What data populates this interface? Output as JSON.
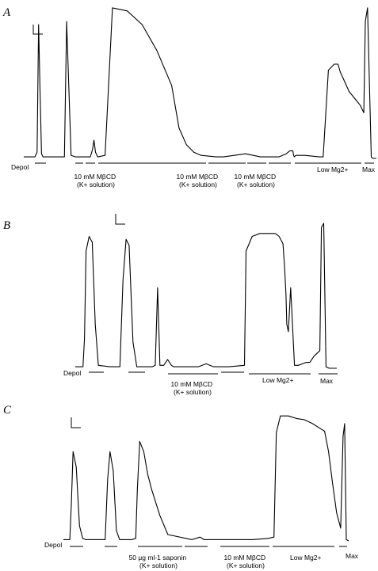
{
  "chart_data": [
    {
      "type": "line",
      "panel": "A",
      "annotations": [
        {
          "text": "Depol",
          "lines": [
            "Depol"
          ]
        },
        {
          "text": "10 mM MβCD (K+ solution)",
          "lines": [
            "10 mM MβCD",
            "(K+ solution)"
          ]
        },
        {
          "text": "10 mM MβCD (K+ solution)",
          "lines": [
            "10 mM MβCD",
            "(K+ solution)"
          ]
        },
        {
          "text": "10 mM MβCD (K+ solution)",
          "lines": [
            "10 mM MβCD",
            "(K+ solution)"
          ]
        },
        {
          "text": "Low Mg2+",
          "lines": [
            "Low Mg2+"
          ]
        },
        {
          "text": "Max",
          "lines": [
            "Max"
          ]
        }
      ],
      "series": [
        {
          "x": [
            0,
            15,
            18,
            20,
            22,
            24,
            26,
            30,
            40,
            55,
            58,
            64,
            70,
            80,
            90,
            93,
            95,
            97,
            100,
            110,
            120,
            140,
            160,
            180,
            200,
            210,
            220,
            230,
            240,
            260,
            270,
            300,
            320,
            345,
            355,
            360,
            364,
            365,
            366,
            368,
            370,
            380,
            400,
            405,
            412,
            420,
            425,
            428,
            440,
            450,
            455,
            460,
            462,
            465,
            470,
            472,
            477
          ],
          "y": [
            1,
            1,
            4,
            88,
            45,
            3,
            1,
            1,
            1,
            1,
            90,
            2,
            1,
            1,
            1,
            6,
            12,
            4,
            1,
            2,
            99,
            97,
            88,
            71,
            48,
            20,
            9,
            4,
            2,
            1,
            1,
            3,
            1,
            1,
            3,
            5,
            5,
            2,
            1,
            2,
            2,
            2,
            1,
            1,
            58,
            62,
            62,
            57,
            44,
            38,
            35,
            30,
            90,
            99,
            1,
            0,
            0
          ]
        }
      ]
    },
    {
      "type": "line",
      "panel": "B",
      "annotations": [
        {
          "text": "Depol",
          "lines": [
            "Depol"
          ]
        },
        {
          "text": "10 mM MβCD (K+ solution)",
          "lines": [
            "10 mM MβCD",
            "(K+ solution)"
          ]
        },
        {
          "text": "Low Mg2+",
          "lines": [
            "Low Mg2+"
          ]
        },
        {
          "text": "Max",
          "lines": [
            "Max"
          ]
        }
      ],
      "series": [
        {
          "x": [
            0,
            10,
            12,
            14,
            18,
            22,
            26,
            30,
            45,
            58,
            62,
            66,
            70,
            75,
            80,
            95,
            100,
            104,
            107,
            110,
            115,
            120,
            125,
            128,
            135,
            145,
            160,
            170,
            180,
            200,
            220,
            222,
            230,
            240,
            260,
            265,
            270,
            272,
            274,
            275,
            277,
            280,
            285,
            290,
            300,
            305,
            310,
            318,
            320,
            323,
            326,
            330,
            340
          ],
          "y": [
            1,
            1,
            20,
            80,
            90,
            86,
            30,
            2,
            1,
            1,
            60,
            88,
            84,
            18,
            1,
            1,
            1,
            2,
            55,
            2,
            2,
            6,
            2,
            1,
            1,
            1,
            1,
            3,
            1,
            1,
            2,
            80,
            90,
            92,
            92,
            90,
            85,
            70,
            50,
            30,
            25,
            55,
            2,
            2,
            4,
            4,
            8,
            12,
            96,
            99,
            1,
            0,
            0
          ]
        }
      ]
    },
    {
      "type": "line",
      "panel": "C",
      "annotations": [
        {
          "text": "Depol",
          "lines": [
            "Depol"
          ]
        },
        {
          "text": "50 μg ml-1 saponin (K+ solution)",
          "lines": [
            "50 μg ml-1 saponin",
            "(K+ solution)"
          ]
        },
        {
          "text": "10 mM MβCD (K+ solution)",
          "lines": [
            "10 mM MβCD",
            "(K+ solution)"
          ]
        },
        {
          "text": "Low Mg2+",
          "lines": [
            "Low Mg2+"
          ]
        },
        {
          "text": "Max",
          "lines": [
            "Max"
          ]
        }
      ],
      "series": [
        {
          "x": [
            0,
            8,
            10,
            12,
            16,
            20,
            24,
            28,
            40,
            52,
            55,
            58,
            62,
            66,
            70,
            85,
            90,
            92,
            95,
            100,
            105,
            110,
            115,
            120,
            130,
            160,
            170,
            175,
            180,
            220,
            235,
            255,
            262,
            265,
            270,
            280,
            290,
            300,
            310,
            320,
            325,
            330,
            335,
            340,
            345,
            348,
            350,
            352,
            355
          ],
          "y": [
            1,
            1,
            30,
            70,
            58,
            12,
            2,
            1,
            1,
            1,
            48,
            70,
            55,
            8,
            1,
            1,
            2,
            40,
            78,
            70,
            52,
            40,
            30,
            20,
            5,
            1,
            3,
            1,
            1,
            1,
            1,
            2,
            3,
            85,
            98,
            98,
            96,
            95,
            92,
            88,
            86,
            70,
            45,
            22,
            10,
            82,
            92,
            1,
            0
          ]
        }
      ]
    }
  ]
}
